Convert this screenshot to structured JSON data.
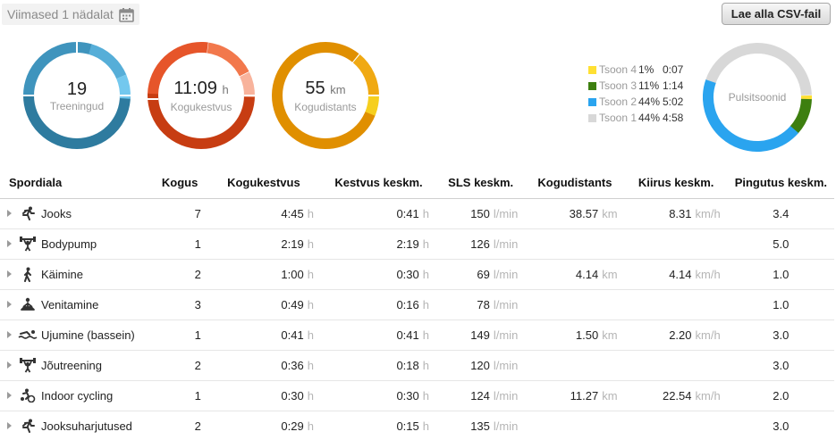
{
  "period": {
    "label": "Viimased 1 nädalat",
    "icon": "calendar-icon"
  },
  "export_button": {
    "label": "Lae alla CSV-fail"
  },
  "summary": {
    "trainings": {
      "value": "19",
      "unit": "",
      "label": "Treeningud"
    },
    "duration": {
      "value": "11:09",
      "unit": "h",
      "label": "Kogukestvus"
    },
    "distance": {
      "value": "55",
      "unit": "km",
      "label": "Kogudistants"
    }
  },
  "colors": {
    "trainings_ring": [
      "#73c8ee",
      "#56aed8",
      "#3f94bd",
      "#2e7b9f"
    ],
    "duration_ring": [
      "#f8b39c",
      "#f2784c",
      "#e6552a",
      "#c73d12"
    ],
    "distance_ring": [
      "#f6cf1e",
      "#f0a912",
      "#e08f00"
    ],
    "zone4": "#ffe033",
    "zone3": "#3d7f0f",
    "zone2": "#2aa4ef",
    "zone1": "#d8d8d8"
  },
  "zones": {
    "title": "Pulsitsoonid",
    "items": [
      {
        "name": "Tsoon 4",
        "percent": "1%",
        "time": "0:07"
      },
      {
        "name": "Tsoon 3",
        "percent": "11%",
        "time": "1:14"
      },
      {
        "name": "Tsoon 2",
        "percent": "44%",
        "time": "5:02"
      },
      {
        "name": "Tsoon 1",
        "percent": "44%",
        "time": "4:58"
      }
    ]
  },
  "table": {
    "headers": {
      "sport": "Spordiala",
      "count": "Kogus",
      "duration": "Kogukestvus",
      "avg_duration": "Kestvus keskm.",
      "sls": "SLS keskm.",
      "distance": "Kogudistants",
      "speed": "Kiirus keskm.",
      "effort": "Pingutus keskm."
    },
    "units": {
      "h": "h",
      "lmin": "l/min",
      "km": "km",
      "kmh": "km/h"
    },
    "rows": [
      {
        "sport": "Jooks",
        "icon": "running-icon",
        "count": "7",
        "duration": "4:45",
        "avg_duration": "0:41",
        "sls": "150",
        "distance": "38.57",
        "speed": "8.31",
        "effort": "3.4"
      },
      {
        "sport": "Bodypump",
        "icon": "weightlifting-icon",
        "count": "1",
        "duration": "2:19",
        "avg_duration": "2:19",
        "sls": "126",
        "distance": "",
        "speed": "",
        "effort": "5.0"
      },
      {
        "sport": "Käimine",
        "icon": "walking-icon",
        "count": "2",
        "duration": "1:00",
        "avg_duration": "0:30",
        "sls": "69",
        "distance": "4.14",
        "speed": "4.14",
        "effort": "1.0"
      },
      {
        "sport": "Venitamine",
        "icon": "stretching-icon",
        "count": "3",
        "duration": "0:49",
        "avg_duration": "0:16",
        "sls": "78",
        "distance": "",
        "speed": "",
        "effort": "1.0"
      },
      {
        "sport": "Ujumine (bassein)",
        "icon": "swimming-icon",
        "count": "1",
        "duration": "0:41",
        "avg_duration": "0:41",
        "sls": "149",
        "distance": "1.50",
        "speed": "2.20",
        "effort": "3.0"
      },
      {
        "sport": "Jõutreening",
        "icon": "strength-icon",
        "count": "2",
        "duration": "0:36",
        "avg_duration": "0:18",
        "sls": "120",
        "distance": "",
        "speed": "",
        "effort": "3.0"
      },
      {
        "sport": "Indoor cycling",
        "icon": "cycling-icon",
        "count": "1",
        "duration": "0:30",
        "avg_duration": "0:30",
        "sls": "124",
        "distance": "11.27",
        "speed": "22.54",
        "effort": "2.0"
      },
      {
        "sport": "Jooksuharjutused",
        "icon": "running-drills-icon",
        "count": "2",
        "duration": "0:29",
        "avg_duration": "0:15",
        "sls": "135",
        "distance": "",
        "speed": "",
        "effort": "3.0"
      }
    ]
  }
}
